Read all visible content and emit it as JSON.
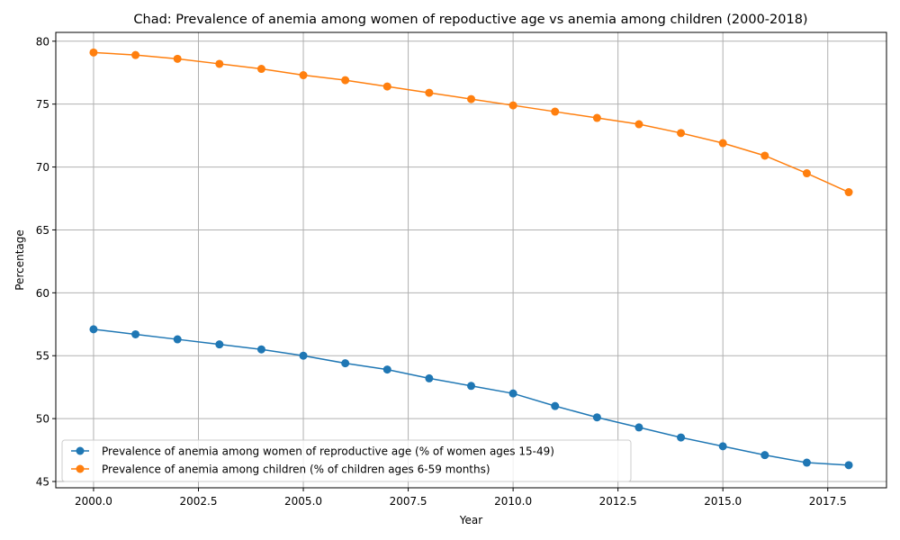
{
  "chart_data": {
    "type": "line",
    "title": "Chad: Prevalence of anemia among women of repoductive age vs anemia among children (2000-2018)",
    "xlabel": "Year",
    "ylabel": "Percentage",
    "x": [
      2000,
      2001,
      2002,
      2003,
      2004,
      2005,
      2006,
      2007,
      2008,
      2009,
      2010,
      2011,
      2012,
      2013,
      2014,
      2015,
      2016,
      2017,
      2018
    ],
    "xlim": [
      1999.1,
      2018.9
    ],
    "ylim": [
      44.5,
      80.7
    ],
    "xticks": [
      2000.0,
      2002.5,
      2005.0,
      2007.5,
      2010.0,
      2012.5,
      2015.0,
      2017.5
    ],
    "xtick_labels": [
      "2000.0",
      "2002.5",
      "2005.0",
      "2007.5",
      "2010.0",
      "2012.5",
      "2015.0",
      "2017.5"
    ],
    "yticks": [
      45,
      50,
      55,
      60,
      65,
      70,
      75,
      80
    ],
    "ytick_labels": [
      "45",
      "50",
      "55",
      "60",
      "65",
      "70",
      "75",
      "80"
    ],
    "grid": true,
    "legend_position": "lower-left",
    "series": [
      {
        "name": "Prevalence of anemia among women of reproductive age (% of women ages 15-49)",
        "color": "#1f77b4",
        "values": [
          57.1,
          56.7,
          56.3,
          55.9,
          55.5,
          55.0,
          54.4,
          53.9,
          53.2,
          52.6,
          52.0,
          51.0,
          50.1,
          49.3,
          48.5,
          47.8,
          47.1,
          46.5,
          46.3
        ]
      },
      {
        "name": "Prevalence of anemia among children (% of children ages 6-59 months)",
        "color": "#ff7f0e",
        "values": [
          79.1,
          78.9,
          78.6,
          78.2,
          77.8,
          77.3,
          76.9,
          76.4,
          75.9,
          75.4,
          74.9,
          74.4,
          73.9,
          73.4,
          72.7,
          71.9,
          70.9,
          69.5,
          68.0
        ]
      }
    ]
  }
}
